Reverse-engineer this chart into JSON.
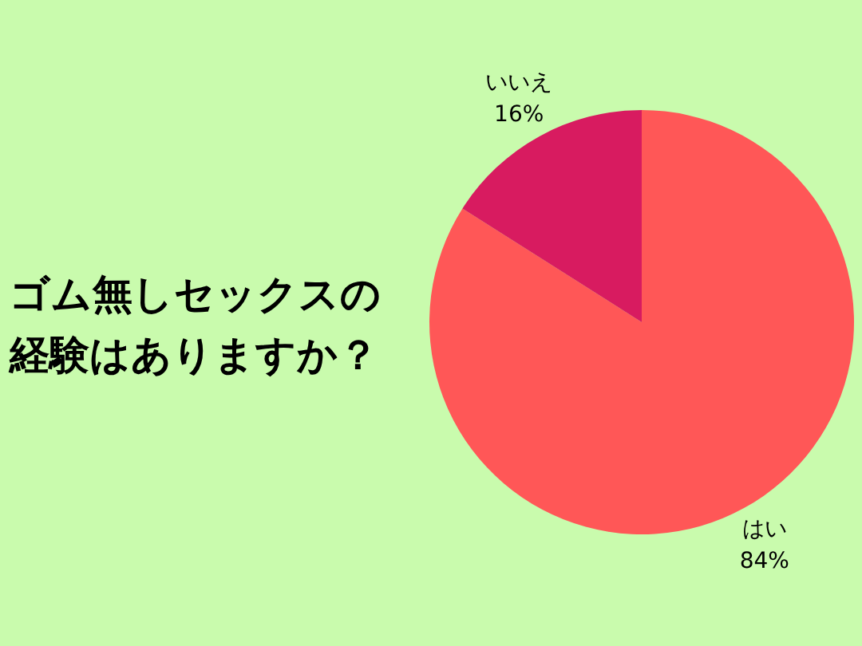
{
  "chart_data": {
    "type": "pie",
    "title": "ゴム無しセックスの経験はありますか？",
    "categories": [
      "はい",
      "いいえ"
    ],
    "values": [
      84,
      16
    ],
    "value_labels": [
      "84%",
      "16%"
    ],
    "colors": [
      "#ff5757",
      "#d81b60"
    ],
    "legend": false
  }
}
